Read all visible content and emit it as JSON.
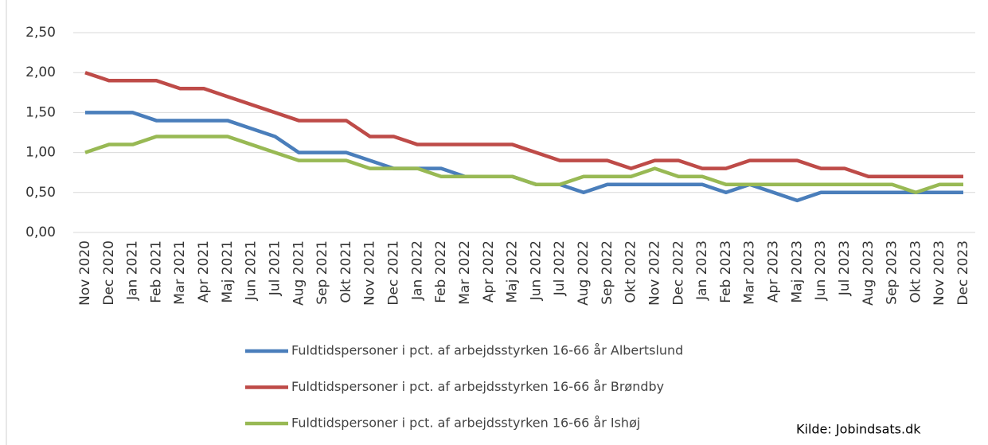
{
  "chart_data": {
    "type": "line",
    "categories": [
      "Nov 2020",
      "Dec 2020",
      "Jan 2021",
      "Feb 2021",
      "Mar 2021",
      "Apr 2021",
      "Maj 2021",
      "Jun 2021",
      "Jul 2021",
      "Aug 2021",
      "Sep 2021",
      "Okt 2021",
      "Nov 2021",
      "Dec 2021",
      "Jan 2022",
      "Feb 2022",
      "Mar 2022",
      "Apr 2022",
      "Maj 2022",
      "Jun 2022",
      "Jul 2022",
      "Aug 2022",
      "Sep 2022",
      "Okt 2022",
      "Nov 2022",
      "Dec 2022",
      "Jan 2023",
      "Feb 2023",
      "Mar 2023",
      "Apr 2023",
      "Maj 2023",
      "Jun 2023",
      "Jul 2023",
      "Aug 2023",
      "Sep 2023",
      "Okt 2023",
      "Nov 2023",
      "Dec 2023"
    ],
    "series": [
      {
        "name": "Fuldtidspersoner i pct. af arbejdsstyrken 16-66 år Albertslund",
        "color": "#4a7ebb",
        "values": [
          1.5,
          1.5,
          1.5,
          1.4,
          1.4,
          1.4,
          1.4,
          1.3,
          1.2,
          1.0,
          1.0,
          1.0,
          0.9,
          0.8,
          0.8,
          0.8,
          0.7,
          0.7,
          0.7,
          0.6,
          0.6,
          0.5,
          0.6,
          0.6,
          0.6,
          0.6,
          0.6,
          0.5,
          0.6,
          0.5,
          0.4,
          0.5,
          0.5,
          0.5,
          0.5,
          0.5,
          0.5,
          0.5
        ]
      },
      {
        "name": "Fuldtidspersoner i pct. af arbejdsstyrken 16-66 år Brøndby",
        "color": "#be4b48",
        "values": [
          2.0,
          1.9,
          1.9,
          1.9,
          1.8,
          1.8,
          1.7,
          1.6,
          1.5,
          1.4,
          1.4,
          1.4,
          1.2,
          1.2,
          1.1,
          1.1,
          1.1,
          1.1,
          1.1,
          1.0,
          0.9,
          0.9,
          0.9,
          0.8,
          0.9,
          0.9,
          0.8,
          0.8,
          0.9,
          0.9,
          0.9,
          0.8,
          0.8,
          0.7,
          0.7,
          0.7,
          0.7,
          0.7
        ]
      },
      {
        "name": "Fuldtidspersoner i pct. af arbejdsstyrken 16-66 år Ishøj",
        "color": "#98b954",
        "values": [
          1.0,
          1.1,
          1.1,
          1.2,
          1.2,
          1.2,
          1.2,
          1.1,
          1.0,
          0.9,
          0.9,
          0.9,
          0.8,
          0.8,
          0.8,
          0.7,
          0.7,
          0.7,
          0.7,
          0.6,
          0.6,
          0.7,
          0.7,
          0.7,
          0.8,
          0.7,
          0.7,
          0.6,
          0.6,
          0.6,
          0.6,
          0.6,
          0.6,
          0.6,
          0.6,
          0.5,
          0.6,
          0.6
        ]
      }
    ],
    "ylim": [
      0,
      2.5
    ],
    "yticks": [
      {
        "value": 0,
        "label": "0,00"
      },
      {
        "value": 0.5,
        "label": "0,50"
      },
      {
        "value": 1,
        "label": "1,00"
      },
      {
        "value": 1.5,
        "label": "1,50"
      },
      {
        "value": 2,
        "label": "2,00"
      },
      {
        "value": 2.5,
        "label": "2,50"
      }
    ],
    "grid": true,
    "source": "Kilde: Jobindsats.dk"
  }
}
